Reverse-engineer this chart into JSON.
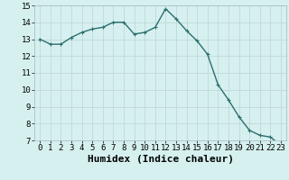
{
  "x": [
    0,
    1,
    2,
    3,
    4,
    5,
    6,
    7,
    8,
    9,
    10,
    11,
    12,
    13,
    14,
    15,
    16,
    17,
    18,
    19,
    20,
    21,
    22,
    23
  ],
  "y": [
    13.0,
    12.7,
    12.7,
    13.1,
    13.4,
    13.6,
    13.7,
    14.0,
    14.0,
    13.3,
    13.4,
    13.7,
    14.8,
    14.2,
    13.5,
    12.9,
    12.1,
    10.3,
    9.4,
    8.4,
    7.6,
    7.3,
    7.2,
    6.7
  ],
  "line_color": "#2d6e6e",
  "marker": "+",
  "marker_size": 3,
  "bg_color": "#d6f0f0",
  "grid_color": "#c0d8d8",
  "xlabel": "Humidex (Indice chaleur)",
  "xlim": [
    -0.5,
    23.5
  ],
  "ylim": [
    7,
    15
  ],
  "yticks": [
    7,
    8,
    9,
    10,
    11,
    12,
    13,
    14,
    15
  ],
  "xticks": [
    0,
    1,
    2,
    3,
    4,
    5,
    6,
    7,
    8,
    9,
    10,
    11,
    12,
    13,
    14,
    15,
    16,
    17,
    18,
    19,
    20,
    21,
    22,
    23
  ],
  "tick_label_fontsize": 6.5,
  "xlabel_fontsize": 8,
  "line_width": 1.0
}
